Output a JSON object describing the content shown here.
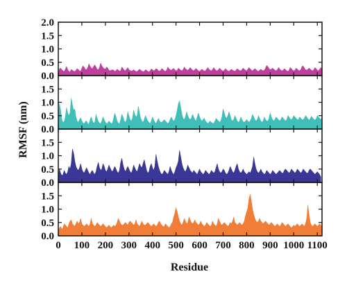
{
  "chart_data": {
    "type": "area",
    "title": "",
    "xlabel": "Residue",
    "ylabel": "RMSF (nm)",
    "x_range": [
      0,
      1120
    ],
    "x_ticks": [
      0,
      100,
      200,
      300,
      400,
      500,
      600,
      700,
      800,
      900,
      1000,
      1100
    ],
    "series_stride": 5,
    "panels": [
      {
        "color": "#bf3f9f",
        "ylim": [
          0.0,
          2.0
        ],
        "y_ticks": [
          "0.0",
          "0.5",
          "1.0",
          "1.5",
          "2.0"
        ],
        "values": [
          0.1,
          0.25,
          0.28,
          0.22,
          0.18,
          0.15,
          0.24,
          0.34,
          0.22,
          0.16,
          0.14,
          0.23,
          0.2,
          0.17,
          0.15,
          0.2,
          0.26,
          0.22,
          0.18,
          0.16,
          0.28,
          0.36,
          0.31,
          0.23,
          0.22,
          0.3,
          0.44,
          0.35,
          0.28,
          0.26,
          0.34,
          0.4,
          0.32,
          0.24,
          0.22,
          0.3,
          0.47,
          0.36,
          0.3,
          0.26,
          0.24,
          0.32,
          0.28,
          0.2,
          0.18,
          0.2,
          0.22,
          0.2,
          0.16,
          0.18,
          0.24,
          0.2,
          0.17,
          0.18,
          0.32,
          0.27,
          0.2,
          0.18,
          0.24,
          0.3,
          0.22,
          0.19,
          0.17,
          0.18,
          0.22,
          0.18,
          0.16,
          0.15,
          0.2,
          0.24,
          0.2,
          0.17,
          0.15,
          0.16,
          0.22,
          0.2,
          0.16,
          0.14,
          0.18,
          0.25,
          0.22,
          0.18,
          0.2,
          0.26,
          0.24,
          0.18,
          0.17,
          0.2,
          0.27,
          0.22,
          0.18,
          0.16,
          0.2,
          0.32,
          0.26,
          0.22,
          0.2,
          0.24,
          0.27,
          0.21,
          0.18,
          0.2,
          0.28,
          0.24,
          0.2,
          0.18,
          0.22,
          0.32,
          0.26,
          0.22,
          0.2,
          0.24,
          0.3,
          0.25,
          0.2,
          0.18,
          0.22,
          0.27,
          0.22,
          0.18,
          0.16,
          0.2,
          0.24,
          0.2,
          0.17,
          0.18,
          0.24,
          0.3,
          0.24,
          0.2,
          0.18,
          0.22,
          0.3,
          0.24,
          0.19,
          0.18,
          0.22,
          0.28,
          0.23,
          0.19,
          0.17,
          0.2,
          0.26,
          0.21,
          0.18,
          0.16,
          0.2,
          0.24,
          0.2,
          0.18,
          0.17,
          0.2,
          0.26,
          0.22,
          0.19,
          0.18,
          0.22,
          0.28,
          0.24,
          0.2,
          0.18,
          0.24,
          0.3,
          0.25,
          0.2,
          0.18,
          0.22,
          0.26,
          0.22,
          0.18,
          0.16,
          0.2,
          0.24,
          0.2,
          0.18,
          0.2,
          0.28,
          0.38,
          0.34,
          0.26,
          0.22,
          0.24,
          0.28,
          0.24,
          0.2,
          0.18,
          0.22,
          0.3,
          0.25,
          0.2,
          0.18,
          0.2,
          0.26,
          0.22,
          0.18,
          0.16,
          0.2,
          0.3,
          0.26,
          0.2,
          0.18,
          0.2,
          0.28,
          0.24,
          0.2,
          0.18,
          0.22,
          0.34,
          0.36,
          0.28,
          0.22,
          0.2,
          0.24,
          0.28,
          0.24,
          0.2,
          0.18,
          0.22,
          0.3,
          0.26,
          0.2,
          0.18,
          0.24,
          0.3,
          0.25,
          0.2,
          0.12
        ]
      },
      {
        "color": "#3fbfb8",
        "ylim": [
          0.0,
          2.0
        ],
        "y_ticks": [
          "0.0",
          "0.5",
          "1.0",
          "1.5"
        ],
        "values": [
          0.3,
          0.95,
          0.7,
          0.35,
          0.25,
          0.28,
          0.45,
          0.8,
          0.6,
          0.5,
          0.6,
          1.15,
          0.9,
          0.7,
          0.75,
          0.45,
          0.3,
          0.25,
          0.35,
          0.42,
          0.3,
          0.22,
          0.2,
          0.28,
          0.3,
          0.2,
          0.18,
          0.35,
          0.45,
          0.3,
          0.22,
          0.25,
          0.55,
          0.4,
          0.28,
          0.22,
          0.2,
          0.3,
          0.45,
          0.35,
          0.25,
          0.2,
          0.22,
          0.3,
          0.25,
          0.2,
          0.22,
          0.4,
          0.6,
          0.45,
          0.3,
          0.22,
          0.2,
          0.35,
          0.55,
          0.45,
          0.3,
          0.25,
          0.35,
          0.65,
          0.5,
          0.35,
          0.3,
          0.4,
          0.7,
          0.55,
          0.45,
          0.5,
          0.85,
          0.6,
          0.4,
          0.3,
          0.25,
          0.35,
          0.5,
          0.4,
          0.3,
          0.25,
          0.2,
          0.3,
          0.45,
          0.35,
          0.25,
          0.2,
          0.3,
          0.4,
          0.3,
          0.25,
          0.25,
          0.3,
          0.35,
          0.3,
          0.25,
          0.2,
          0.25,
          0.35,
          0.45,
          0.35,
          0.3,
          0.35,
          0.5,
          0.7,
          0.95,
          1.05,
          0.8,
          0.55,
          0.4,
          0.35,
          0.45,
          0.65,
          0.5,
          0.4,
          0.35,
          0.4,
          0.55,
          0.45,
          0.35,
          0.3,
          0.45,
          0.6,
          0.45,
          0.35,
          0.3,
          0.35,
          0.4,
          0.3,
          0.25,
          0.2,
          0.25,
          0.3,
          0.25,
          0.22,
          0.2,
          0.3,
          0.4,
          0.35,
          0.3,
          0.25,
          0.3,
          0.45,
          0.75,
          0.6,
          0.45,
          0.4,
          0.5,
          0.65,
          0.5,
          0.35,
          0.3,
          0.35,
          0.5,
          0.4,
          0.3,
          0.25,
          0.3,
          0.45,
          0.35,
          0.28,
          0.25,
          0.3,
          0.35,
          0.3,
          0.25,
          0.3,
          0.4,
          0.55,
          0.45,
          0.35,
          0.3,
          0.35,
          0.5,
          0.4,
          0.3,
          0.25,
          0.3,
          0.45,
          0.35,
          0.3,
          0.3,
          0.4,
          0.6,
          0.45,
          0.35,
          0.3,
          0.35,
          0.45,
          0.4,
          0.35,
          0.3,
          0.35,
          0.45,
          0.4,
          0.35,
          0.3,
          0.35,
          0.5,
          0.45,
          0.38,
          0.35,
          0.4,
          0.5,
          0.45,
          0.4,
          0.35,
          0.35,
          0.45,
          0.4,
          0.35,
          0.35,
          0.4,
          0.5,
          0.45,
          0.38,
          0.33,
          0.38,
          0.48,
          0.42,
          0.36,
          0.33,
          0.38,
          0.5,
          0.45,
          0.4,
          0.35,
          0.45,
          0.65,
          0.75,
          0.55,
          0.4,
          0.35,
          0.3,
          0.25,
          0.2,
          0.15
        ]
      },
      {
        "color": "#3b3796",
        "ylim": [
          0.0,
          2.0
        ],
        "y_ticks": [
          "0.0",
          "0.5",
          "1.0",
          "1.5"
        ],
        "values": [
          0.2,
          0.5,
          0.35,
          0.25,
          0.3,
          0.45,
          0.35,
          0.3,
          0.4,
          0.6,
          0.5,
          0.7,
          1.25,
          1.1,
          0.8,
          0.6,
          0.5,
          0.45,
          0.55,
          0.7,
          0.5,
          0.4,
          0.35,
          0.45,
          0.55,
          0.45,
          0.35,
          0.3,
          0.4,
          0.45,
          0.35,
          0.3,
          0.4,
          0.6,
          0.75,
          0.55,
          0.45,
          0.5,
          0.7,
          0.6,
          0.45,
          0.4,
          0.5,
          0.65,
          0.55,
          0.45,
          0.4,
          0.5,
          0.6,
          0.5,
          0.4,
          0.35,
          0.45,
          0.75,
          0.9,
          0.65,
          0.5,
          0.4,
          0.5,
          0.6,
          0.5,
          0.4,
          0.35,
          0.45,
          0.65,
          0.55,
          0.45,
          0.4,
          0.55,
          0.7,
          0.6,
          0.55,
          0.7,
          0.85,
          0.65,
          0.45,
          0.35,
          0.4,
          0.6,
          0.7,
          0.55,
          0.45,
          0.6,
          1.05,
          0.8,
          0.6,
          0.45,
          0.35,
          0.3,
          0.35,
          0.45,
          0.4,
          0.35,
          0.3,
          0.4,
          0.6,
          0.45,
          0.35,
          0.3,
          0.4,
          0.55,
          0.65,
          0.8,
          1.2,
          0.95,
          0.7,
          0.55,
          0.45,
          0.4,
          0.5,
          0.65,
          0.55,
          0.45,
          0.4,
          0.35,
          0.45,
          0.4,
          0.35,
          0.3,
          0.4,
          0.5,
          0.4,
          0.35,
          0.3,
          0.35,
          0.45,
          0.4,
          0.35,
          0.3,
          0.35,
          0.45,
          0.4,
          0.35,
          0.4,
          0.55,
          0.7,
          0.5,
          0.4,
          0.35,
          0.4,
          0.5,
          0.45,
          0.35,
          0.3,
          0.35,
          0.45,
          0.6,
          0.5,
          0.4,
          0.35,
          0.45,
          0.6,
          0.7,
          0.5,
          0.4,
          0.35,
          0.4,
          0.5,
          0.4,
          0.35,
          0.3,
          0.35,
          0.4,
          0.35,
          0.45,
          0.6,
          0.95,
          0.7,
          0.5,
          0.4,
          0.35,
          0.4,
          0.5,
          0.4,
          0.35,
          0.3,
          0.35,
          0.45,
          0.4,
          0.35,
          0.3,
          0.35,
          0.45,
          0.4,
          0.35,
          0.3,
          0.35,
          0.4,
          0.45,
          0.4,
          0.35,
          0.35,
          0.45,
          0.5,
          0.45,
          0.4,
          0.35,
          0.4,
          0.5,
          0.45,
          0.4,
          0.35,
          0.4,
          0.5,
          0.45,
          0.4,
          0.35,
          0.4,
          0.5,
          0.45,
          0.4,
          0.35,
          0.35,
          0.45,
          0.5,
          0.45,
          0.4,
          0.35,
          0.3,
          0.35,
          0.4,
          0.35,
          0.3,
          0.2
        ]
      },
      {
        "color": "#f07e38",
        "ylim": [
          0.0,
          2.0
        ],
        "y_ticks": [
          "0.0",
          "0.5",
          "1.0",
          "1.5"
        ],
        "values": [
          0.2,
          0.3,
          0.35,
          0.25,
          0.3,
          0.45,
          0.4,
          0.35,
          0.3,
          0.45,
          0.55,
          0.6,
          0.45,
          0.4,
          0.35,
          0.45,
          0.55,
          0.45,
          0.5,
          0.65,
          0.45,
          0.4,
          0.35,
          0.4,
          0.45,
          0.4,
          0.35,
          0.45,
          0.65,
          0.45,
          0.4,
          0.35,
          0.4,
          0.5,
          0.45,
          0.4,
          0.35,
          0.4,
          0.45,
          0.4,
          0.35,
          0.3,
          0.35,
          0.4,
          0.35,
          0.3,
          0.35,
          0.4,
          0.35,
          0.4,
          0.5,
          0.65,
          0.55,
          0.45,
          0.4,
          0.4,
          0.45,
          0.5,
          0.45,
          0.4,
          0.5,
          0.55,
          0.5,
          0.45,
          0.4,
          0.45,
          0.6,
          0.45,
          0.4,
          0.35,
          0.45,
          0.55,
          0.45,
          0.4,
          0.4,
          0.45,
          0.5,
          0.45,
          0.4,
          0.35,
          0.4,
          0.45,
          0.4,
          0.35,
          0.4,
          0.5,
          0.55,
          0.45,
          0.4,
          0.35,
          0.35,
          0.45,
          0.4,
          0.35,
          0.3,
          0.35,
          0.45,
          0.5,
          0.7,
          0.85,
          1.05,
          0.9,
          0.7,
          0.55,
          0.45,
          0.4,
          0.5,
          0.65,
          0.55,
          0.45,
          0.5,
          0.7,
          0.6,
          0.5,
          0.45,
          0.5,
          0.6,
          0.5,
          0.45,
          0.4,
          0.45,
          0.55,
          0.45,
          0.4,
          0.35,
          0.4,
          0.5,
          0.45,
          0.4,
          0.35,
          0.4,
          0.55,
          0.45,
          0.4,
          0.35,
          0.45,
          0.65,
          0.55,
          0.45,
          0.4,
          0.45,
          0.5,
          0.45,
          0.4,
          0.35,
          0.4,
          0.5,
          0.45,
          0.55,
          0.7,
          0.5,
          0.45,
          0.4,
          0.45,
          0.5,
          0.45,
          0.4,
          0.45,
          0.55,
          0.75,
          0.9,
          1.05,
          1.4,
          1.55,
          1.3,
          1.0,
          0.8,
          0.65,
          0.55,
          0.5,
          0.55,
          0.65,
          0.55,
          0.5,
          0.45,
          0.5,
          0.55,
          0.5,
          0.45,
          0.4,
          0.45,
          0.5,
          0.45,
          0.4,
          0.35,
          0.4,
          0.45,
          0.4,
          0.35,
          0.4,
          0.5,
          0.45,
          0.4,
          0.35,
          0.4,
          0.45,
          0.4,
          0.35,
          0.3,
          0.35,
          0.4,
          0.35,
          0.4,
          0.45,
          0.4,
          0.35,
          0.4,
          0.45,
          0.4,
          0.35,
          0.45,
          0.65,
          1.15,
          0.8,
          0.5,
          0.4,
          0.35,
          0.4,
          0.45,
          0.4,
          0.35,
          0.4,
          0.45,
          0.4,
          0.35,
          0.3,
          0.2
        ]
      }
    ]
  }
}
